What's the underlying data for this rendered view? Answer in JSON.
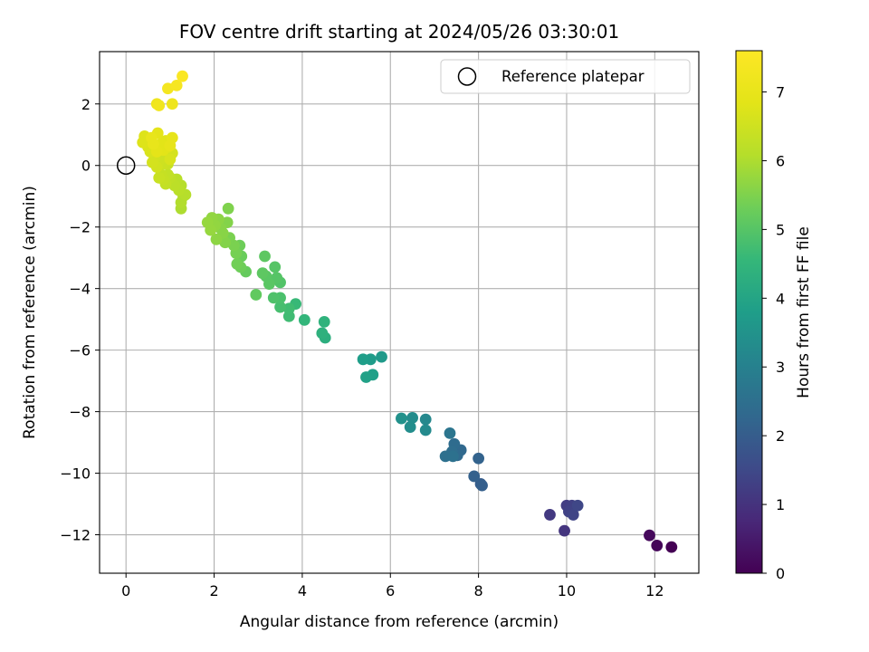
{
  "chart_data": {
    "type": "scatter",
    "title": "FOV centre drift starting at 2024/05/26 03:30:01",
    "xlabel": "Angular distance from reference (arcmin)",
    "ylabel": "Rotation from reference (arcmin)",
    "xlim": [
      -0.6,
      13.0
    ],
    "ylim": [
      -13.25,
      3.7
    ],
    "xticks": [
      0,
      2,
      4,
      6,
      8,
      10,
      12
    ],
    "yticks": [
      -12,
      -10,
      -8,
      -6,
      -4,
      -2,
      0,
      2
    ],
    "grid": true,
    "legend": {
      "position": "top-right",
      "entries": [
        {
          "label": "Reference platepar",
          "marker": "open-circle"
        }
      ]
    },
    "reference_point": {
      "x": 0,
      "y": 0
    },
    "colorbar": {
      "label": "Hours from first FF file",
      "colormap": "viridis",
      "min": 0,
      "max": 7.6,
      "ticks": [
        0,
        1,
        2,
        3,
        4,
        5,
        6,
        7
      ]
    },
    "points": [
      [
        12.38,
        -12.4,
        0.0
      ],
      [
        12.05,
        -12.35,
        0.08
      ],
      [
        11.88,
        -12.02,
        0.15
      ],
      [
        9.95,
        -11.87,
        1.05
      ],
      [
        9.62,
        -11.35,
        1.15
      ],
      [
        10.0,
        -11.05,
        1.25
      ],
      [
        10.12,
        -11.05,
        1.3
      ],
      [
        10.05,
        -11.25,
        1.35
      ],
      [
        10.15,
        -11.35,
        1.4
      ],
      [
        10.25,
        -11.05,
        1.45
      ],
      [
        8.05,
        -10.35,
        2.0
      ],
      [
        8.08,
        -10.4,
        2.05
      ],
      [
        7.9,
        -10.1,
        2.1
      ],
      [
        8.0,
        -9.52,
        2.15
      ],
      [
        7.6,
        -9.25,
        2.3
      ],
      [
        7.52,
        -9.42,
        2.35
      ],
      [
        7.45,
        -9.05,
        2.4
      ],
      [
        7.4,
        -9.3,
        2.45
      ],
      [
        7.25,
        -9.45,
        2.5
      ],
      [
        7.42,
        -9.45,
        2.55
      ],
      [
        7.35,
        -8.7,
        2.65
      ],
      [
        6.8,
        -8.25,
        3.2
      ],
      [
        6.8,
        -8.6,
        3.25
      ],
      [
        6.5,
        -8.2,
        3.3
      ],
      [
        6.45,
        -8.5,
        3.35
      ],
      [
        6.25,
        -8.22,
        3.45
      ],
      [
        5.8,
        -6.22,
        3.7
      ],
      [
        5.55,
        -6.3,
        3.75
      ],
      [
        5.38,
        -6.3,
        3.8
      ],
      [
        5.6,
        -6.8,
        3.85
      ],
      [
        5.45,
        -6.88,
        3.9
      ],
      [
        4.52,
        -5.6,
        4.3
      ],
      [
        4.45,
        -5.45,
        4.35
      ],
      [
        4.5,
        -5.08,
        4.4
      ],
      [
        4.05,
        -5.02,
        4.5
      ],
      [
        3.85,
        -4.5,
        4.6
      ],
      [
        3.7,
        -4.9,
        4.7
      ],
      [
        3.7,
        -4.65,
        4.72
      ],
      [
        3.5,
        -4.6,
        4.8
      ],
      [
        3.5,
        -4.3,
        4.85
      ],
      [
        3.35,
        -4.3,
        4.9
      ],
      [
        3.5,
        -3.8,
        4.95
      ],
      [
        3.42,
        -3.65,
        5.0
      ],
      [
        3.38,
        -3.3,
        5.0
      ],
      [
        3.25,
        -3.85,
        5.05
      ],
      [
        3.18,
        -3.6,
        5.05
      ],
      [
        3.15,
        -2.95,
        5.1
      ],
      [
        3.1,
        -3.5,
        5.1
      ],
      [
        2.95,
        -4.2,
        5.15
      ],
      [
        2.72,
        -3.45,
        5.2
      ],
      [
        2.62,
        -2.95,
        5.25
      ],
      [
        2.6,
        -3.3,
        5.3
      ],
      [
        2.58,
        -2.6,
        5.3
      ],
      [
        2.52,
        -3.2,
        5.35
      ],
      [
        2.5,
        -2.85,
        5.4
      ],
      [
        2.45,
        -2.6,
        5.45
      ],
      [
        2.35,
        -2.35,
        5.45
      ],
      [
        2.32,
        -1.4,
        5.5
      ],
      [
        2.3,
        -1.85,
        5.55
      ],
      [
        2.25,
        -2.5,
        5.55
      ],
      [
        2.2,
        -2.2,
        5.6
      ],
      [
        2.15,
        -2.05,
        5.6
      ],
      [
        2.1,
        -1.75,
        5.65
      ],
      [
        2.05,
        -2.4,
        5.65
      ],
      [
        2.02,
        -1.95,
        5.7
      ],
      [
        1.95,
        -1.7,
        5.7
      ],
      [
        1.92,
        -2.1,
        5.75
      ],
      [
        1.85,
        -1.85,
        5.75
      ],
      [
        1.25,
        -1.4,
        6.0
      ],
      [
        1.25,
        -1.2,
        6.05
      ],
      [
        1.3,
        -1.0,
        6.05
      ],
      [
        1.35,
        -0.95,
        6.1
      ],
      [
        1.25,
        -0.65,
        6.1
      ],
      [
        1.2,
        -0.8,
        6.15
      ],
      [
        1.15,
        -0.45,
        6.15
      ],
      [
        1.1,
        -0.65,
        6.2
      ],
      [
        1.05,
        -0.55,
        6.2
      ],
      [
        1.0,
        -0.4,
        6.25
      ],
      [
        0.95,
        -0.3,
        6.3
      ],
      [
        0.9,
        -0.6,
        6.3
      ],
      [
        0.85,
        -0.45,
        6.35
      ],
      [
        0.8,
        -0.3,
        6.35
      ],
      [
        0.75,
        -0.4,
        6.4
      ],
      [
        0.95,
        0.05,
        6.4
      ],
      [
        0.9,
        0.2,
        6.45
      ],
      [
        0.85,
        0.05,
        6.45
      ],
      [
        0.8,
        0.35,
        6.5
      ],
      [
        0.75,
        0.15,
        6.5
      ],
      [
        0.7,
        -0.05,
        6.55
      ],
      [
        0.65,
        0.25,
        6.55
      ],
      [
        0.6,
        0.1,
        6.6
      ],
      [
        1.05,
        0.4,
        6.6
      ],
      [
        1.0,
        0.2,
        6.65
      ],
      [
        0.55,
        0.45,
        6.65
      ],
      [
        0.5,
        0.6,
        6.7
      ],
      [
        0.45,
        0.75,
        6.7
      ],
      [
        0.42,
        0.95,
        6.75
      ],
      [
        0.38,
        0.75,
        6.75
      ],
      [
        0.95,
        0.6,
        6.8
      ],
      [
        0.9,
        0.8,
        6.8
      ],
      [
        0.85,
        0.5,
        6.85
      ],
      [
        0.8,
        0.7,
        6.85
      ],
      [
        0.72,
        1.05,
        6.9
      ],
      [
        0.7,
        0.45,
        6.9
      ],
      [
        1.05,
        0.9,
        6.95
      ],
      [
        1.0,
        0.65,
        6.95
      ],
      [
        0.62,
        0.7,
        7.0
      ],
      [
        0.58,
        0.9,
        7.0
      ],
      [
        1.05,
        2.0,
        7.15
      ],
      [
        0.7,
        2.0,
        7.2
      ],
      [
        0.75,
        1.95,
        7.25
      ],
      [
        0.95,
        2.5,
        7.35
      ],
      [
        1.15,
        2.6,
        7.4
      ],
      [
        1.28,
        2.9,
        7.5
      ]
    ]
  }
}
